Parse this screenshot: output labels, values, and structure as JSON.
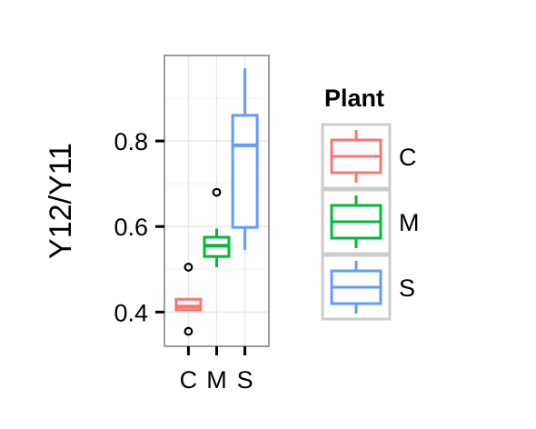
{
  "chart_data": {
    "type": "boxplot",
    "title": "",
    "xlabel": "",
    "ylabel": "Y12/Y11",
    "categories": [
      "C",
      "M",
      "S"
    ],
    "ylim": [
      0.32,
      1.0
    ],
    "yticks": [
      0.4,
      0.6,
      0.8
    ],
    "ytick_labels": [
      "0.4",
      "0.6",
      "0.8"
    ],
    "grid": true,
    "legend": {
      "title": "Plant",
      "placement": "right",
      "entries": [
        "C",
        "M",
        "S"
      ]
    },
    "boxes": [
      {
        "category": "C",
        "color": "#F8766D",
        "whisker_low": 0.405,
        "q1": 0.405,
        "median": 0.413,
        "q3": 0.43,
        "whisker_high": 0.43,
        "outliers": [
          0.505,
          0.355
        ]
      },
      {
        "category": "M",
        "color": "#00BA38",
        "whisker_low": 0.505,
        "q1": 0.53,
        "median": 0.555,
        "q3": 0.575,
        "whisker_high": 0.595,
        "outliers": [
          0.68
        ]
      },
      {
        "category": "S",
        "color": "#619CFF",
        "whisker_low": 0.545,
        "q1": 0.598,
        "median": 0.79,
        "q3": 0.86,
        "whisker_high": 0.97,
        "outliers": []
      }
    ]
  }
}
